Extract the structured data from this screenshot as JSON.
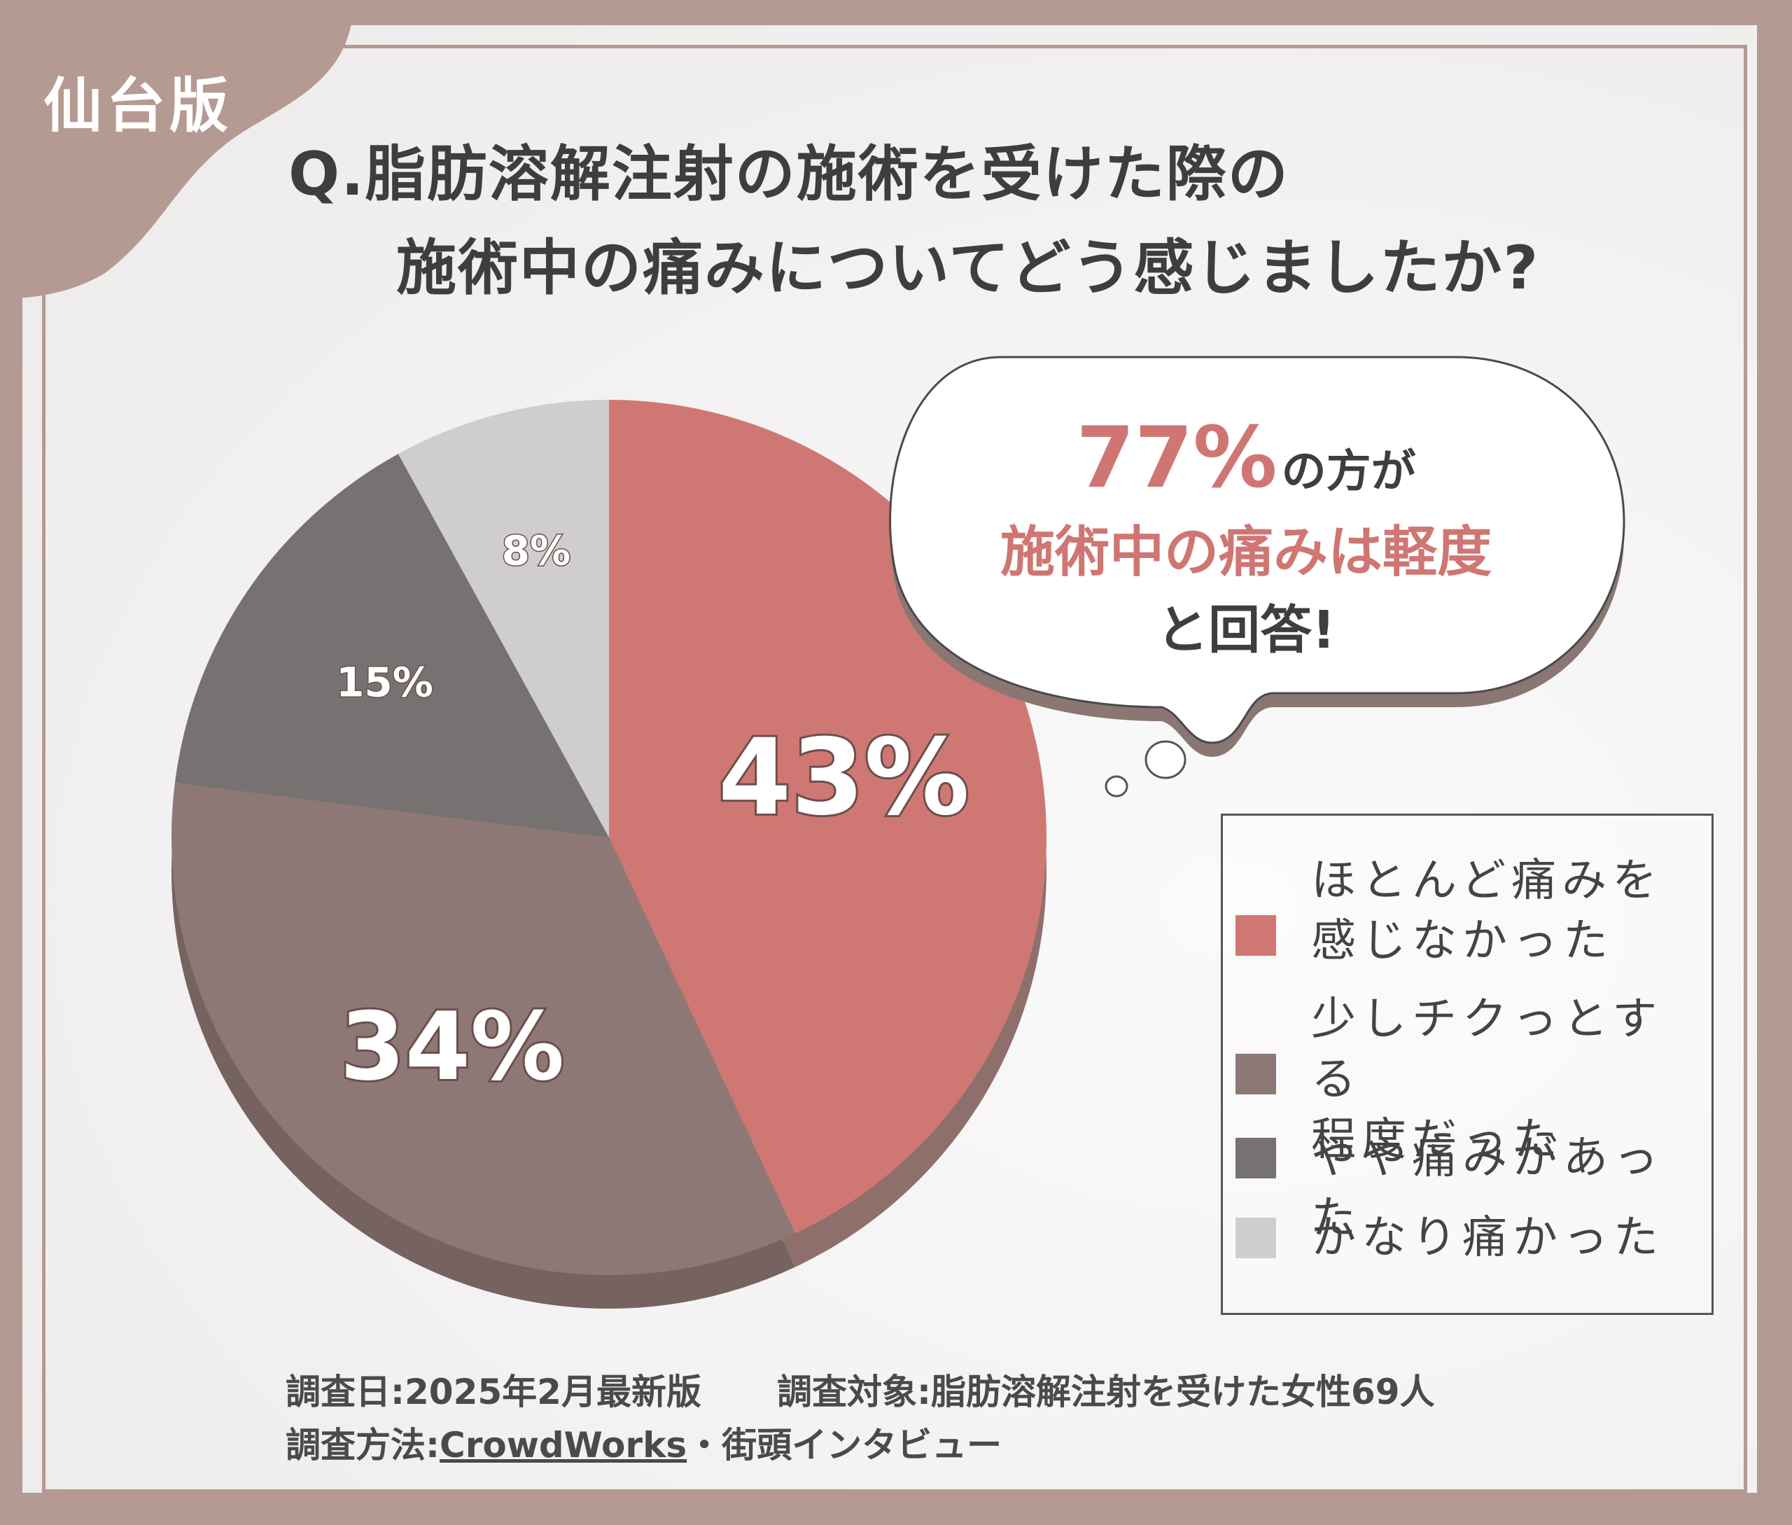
{
  "badge": "仙台版",
  "question": {
    "line1": "Q.脂肪溶解注射の施術を受けた際の",
    "line2": "施術中の痛みについてどう感じましたか?"
  },
  "callout": {
    "percent": "77%",
    "suffix": "の方が",
    "highlight": "施術中の痛みは軽度",
    "tail": "と回答!"
  },
  "chart_data": {
    "type": "pie",
    "categories": [
      "ほとんど痛みを感じなかった",
      "少しチクっとする程度だった",
      "やや痛みがあった",
      "かなり痛かった"
    ],
    "values": [
      43,
      34,
      15,
      8
    ],
    "labels": [
      "43%",
      "34%",
      "15%",
      "8%"
    ],
    "colors": [
      "#cf7873",
      "#8d7875",
      "#767271",
      "#cfcdcd"
    ],
    "legend": {
      "position": "right",
      "entries": [
        "ほとんど痛みを\n感じなかった",
        "少しチクっとする\n程度だった",
        "やや痛みがあった",
        "かなり痛かった"
      ]
    }
  },
  "footer": {
    "date": "調査日:2025年2月最新版",
    "subject": "調査対象:脂肪溶解注射を受けた女性69人",
    "method_label": "調査方法:",
    "method_source": "CrowdWorks",
    "method_rest": "・街頭インタビュー"
  }
}
